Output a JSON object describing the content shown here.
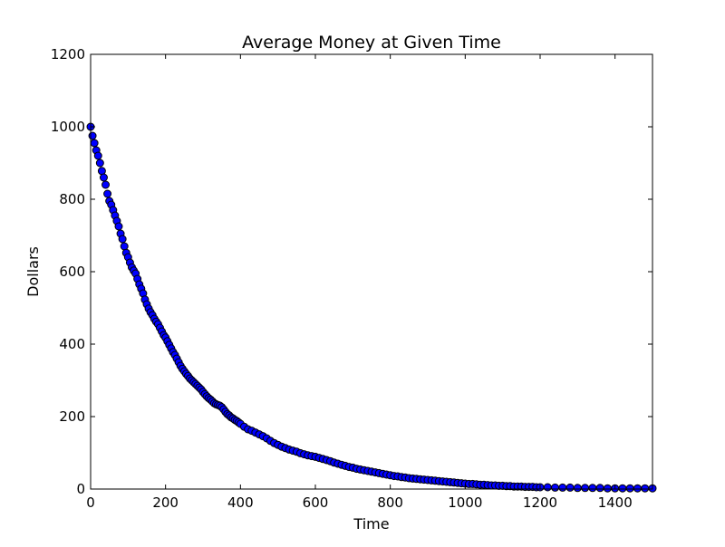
{
  "chart_data": {
    "type": "scatter",
    "title": "Average Money at Given Time",
    "xlabel": "Time",
    "ylabel": "Dollars",
    "xlim": [
      0,
      1500
    ],
    "ylim": [
      0,
      1200
    ],
    "xticks": [
      0,
      200,
      400,
      600,
      800,
      1000,
      1200,
      1400
    ],
    "yticks": [
      0,
      200,
      400,
      600,
      800,
      1000,
      1200
    ],
    "grid": false,
    "legend": "none",
    "series": [
      {
        "marker": "circle",
        "color": "#0000ff",
        "edgecolor": "#000000",
        "points": [
          [
            0,
            1000
          ],
          [
            5,
            975
          ],
          [
            10,
            955
          ],
          [
            15,
            935
          ],
          [
            20,
            920
          ],
          [
            25,
            900
          ],
          [
            30,
            878
          ],
          [
            35,
            860
          ],
          [
            40,
            840
          ],
          [
            45,
            815
          ],
          [
            50,
            795
          ],
          [
            55,
            785
          ],
          [
            60,
            770
          ],
          [
            65,
            755
          ],
          [
            70,
            740
          ],
          [
            75,
            725
          ],
          [
            80,
            705
          ],
          [
            85,
            690
          ],
          [
            90,
            670
          ],
          [
            95,
            652
          ],
          [
            100,
            640
          ],
          [
            105,
            625
          ],
          [
            110,
            612
          ],
          [
            115,
            603
          ],
          [
            120,
            595
          ],
          [
            125,
            580
          ],
          [
            130,
            565
          ],
          [
            135,
            553
          ],
          [
            140,
            540
          ],
          [
            145,
            523
          ],
          [
            150,
            510
          ],
          [
            155,
            498
          ],
          [
            160,
            488
          ],
          [
            165,
            480
          ],
          [
            170,
            470
          ],
          [
            175,
            462
          ],
          [
            180,
            455
          ],
          [
            185,
            445
          ],
          [
            190,
            435
          ],
          [
            195,
            425
          ],
          [
            200,
            418
          ],
          [
            205,
            408
          ],
          [
            210,
            398
          ],
          [
            215,
            388
          ],
          [
            220,
            378
          ],
          [
            225,
            370
          ],
          [
            230,
            360
          ],
          [
            235,
            350
          ],
          [
            240,
            340
          ],
          [
            245,
            332
          ],
          [
            250,
            325
          ],
          [
            255,
            318
          ],
          [
            260,
            312
          ],
          [
            265,
            305
          ],
          [
            270,
            300
          ],
          [
            275,
            295
          ],
          [
            280,
            290
          ],
          [
            285,
            285
          ],
          [
            290,
            280
          ],
          [
            295,
            275
          ],
          [
            300,
            268
          ],
          [
            305,
            262
          ],
          [
            310,
            256
          ],
          [
            315,
            251
          ],
          [
            320,
            247
          ],
          [
            325,
            242
          ],
          [
            330,
            237
          ],
          [
            335,
            234
          ],
          [
            340,
            232
          ],
          [
            345,
            230
          ],
          [
            350,
            226
          ],
          [
            355,
            220
          ],
          [
            360,
            213
          ],
          [
            365,
            207
          ],
          [
            370,
            203
          ],
          [
            375,
            198
          ],
          [
            380,
            195
          ],
          [
            385,
            191
          ],
          [
            390,
            188
          ],
          [
            395,
            184
          ],
          [
            400,
            180
          ],
          [
            410,
            172
          ],
          [
            420,
            165
          ],
          [
            430,
            161
          ],
          [
            440,
            156
          ],
          [
            450,
            151
          ],
          [
            460,
            146
          ],
          [
            470,
            140
          ],
          [
            480,
            133
          ],
          [
            490,
            127
          ],
          [
            500,
            122
          ],
          [
            510,
            117
          ],
          [
            520,
            113
          ],
          [
            530,
            109
          ],
          [
            540,
            106
          ],
          [
            550,
            103
          ],
          [
            560,
            99
          ],
          [
            570,
            96
          ],
          [
            580,
            93
          ],
          [
            590,
            91
          ],
          [
            600,
            89
          ],
          [
            610,
            86
          ],
          [
            620,
            83
          ],
          [
            630,
            80
          ],
          [
            640,
            77
          ],
          [
            650,
            73
          ],
          [
            660,
            70
          ],
          [
            670,
            67
          ],
          [
            680,
            64
          ],
          [
            690,
            61
          ],
          [
            700,
            59
          ],
          [
            710,
            56
          ],
          [
            720,
            54
          ],
          [
            730,
            52
          ],
          [
            740,
            50
          ],
          [
            750,
            48
          ],
          [
            760,
            46
          ],
          [
            770,
            44
          ],
          [
            780,
            42
          ],
          [
            790,
            40
          ],
          [
            800,
            38
          ],
          [
            810,
            36
          ],
          [
            820,
            35
          ],
          [
            830,
            33
          ],
          [
            840,
            32
          ],
          [
            850,
            30
          ],
          [
            860,
            29
          ],
          [
            870,
            28
          ],
          [
            880,
            27
          ],
          [
            890,
            26
          ],
          [
            900,
            25
          ],
          [
            910,
            24
          ],
          [
            920,
            23
          ],
          [
            930,
            22
          ],
          [
            940,
            21
          ],
          [
            950,
            20
          ],
          [
            960,
            19
          ],
          [
            970,
            18
          ],
          [
            980,
            17
          ],
          [
            990,
            16
          ],
          [
            1000,
            15
          ],
          [
            1010,
            14
          ],
          [
            1020,
            14
          ],
          [
            1030,
            13
          ],
          [
            1040,
            12
          ],
          [
            1050,
            12
          ],
          [
            1060,
            11
          ],
          [
            1070,
            10
          ],
          [
            1080,
            10
          ],
          [
            1090,
            9
          ],
          [
            1100,
            9
          ],
          [
            1110,
            8
          ],
          [
            1120,
            8
          ],
          [
            1130,
            7
          ],
          [
            1140,
            7
          ],
          [
            1150,
            7
          ],
          [
            1160,
            6
          ],
          [
            1170,
            6
          ],
          [
            1180,
            6
          ],
          [
            1190,
            5
          ],
          [
            1200,
            5
          ],
          [
            1220,
            5
          ],
          [
            1240,
            4
          ],
          [
            1260,
            4
          ],
          [
            1280,
            4
          ],
          [
            1300,
            3
          ],
          [
            1320,
            3
          ],
          [
            1340,
            3
          ],
          [
            1360,
            3
          ],
          [
            1380,
            2
          ],
          [
            1400,
            2
          ],
          [
            1420,
            2
          ],
          [
            1440,
            2
          ],
          [
            1460,
            2
          ],
          [
            1480,
            2
          ],
          [
            1500,
            2
          ]
        ]
      }
    ]
  }
}
